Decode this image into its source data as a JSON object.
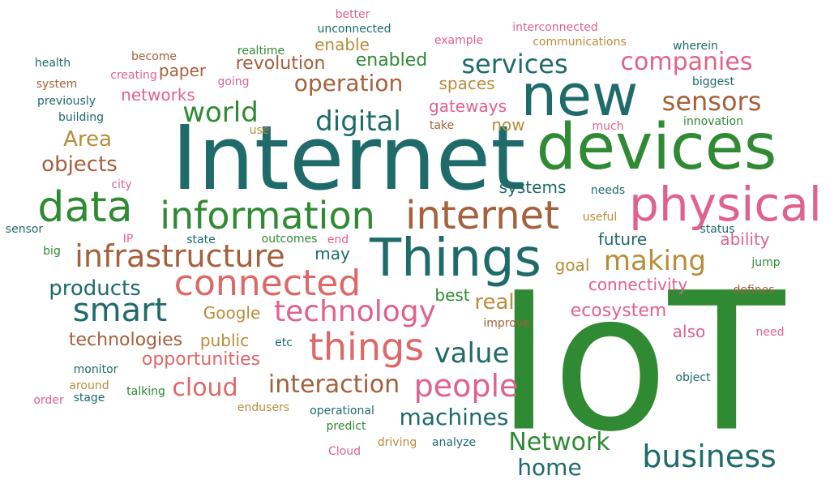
{
  "colors": {
    "teal": "#1e6b6a",
    "green": "#2f8a33",
    "rust": "#a5603c",
    "pink": "#e0628a",
    "salmon": "#dd6868",
    "gold": "#b88d39"
  },
  "words": [
    {
      "text": "IoT",
      "color": "green"
    },
    {
      "text": "Internet",
      "color": "teal"
    },
    {
      "text": "devices",
      "color": "green"
    },
    {
      "text": "new",
      "color": "teal"
    },
    {
      "text": "Things",
      "color": "teal"
    },
    {
      "text": "physical",
      "color": "pink"
    },
    {
      "text": "data",
      "color": "green"
    },
    {
      "text": "information",
      "color": "green"
    },
    {
      "text": "internet",
      "color": "rust"
    },
    {
      "text": "connected",
      "color": "salmon"
    },
    {
      "text": "things",
      "color": "salmon"
    },
    {
      "text": "infrastructure",
      "color": "rust"
    },
    {
      "text": "business",
      "color": "teal"
    },
    {
      "text": "smart",
      "color": "teal"
    },
    {
      "text": "technology",
      "color": "pink"
    },
    {
      "text": "people",
      "color": "pink"
    },
    {
      "text": "digital",
      "color": "teal"
    },
    {
      "text": "services",
      "color": "teal"
    },
    {
      "text": "companies",
      "color": "pink"
    },
    {
      "text": "sensors",
      "color": "rust"
    },
    {
      "text": "world",
      "color": "green"
    },
    {
      "text": "making",
      "color": "gold"
    },
    {
      "text": "value",
      "color": "teal"
    },
    {
      "text": "Network",
      "color": "green"
    },
    {
      "text": "interaction",
      "color": "rust"
    },
    {
      "text": "cloud",
      "color": "salmon"
    },
    {
      "text": "machines",
      "color": "teal"
    },
    {
      "text": "home",
      "color": "teal"
    },
    {
      "text": "operation",
      "color": "rust"
    },
    {
      "text": "products",
      "color": "teal"
    },
    {
      "text": "Area",
      "color": "gold"
    },
    {
      "text": "objects",
      "color": "rust"
    },
    {
      "text": "revolution",
      "color": "rust"
    },
    {
      "text": "enabled",
      "color": "green"
    },
    {
      "text": "real",
      "color": "gold"
    },
    {
      "text": "technologies",
      "color": "rust"
    },
    {
      "text": "opportunities",
      "color": "salmon"
    },
    {
      "text": "ecosystem",
      "color": "pink"
    },
    {
      "text": "connectivity",
      "color": "pink"
    },
    {
      "text": "gateways",
      "color": "pink"
    },
    {
      "text": "paper",
      "color": "rust"
    },
    {
      "text": "networks",
      "color": "pink"
    },
    {
      "text": "enable",
      "color": "gold"
    },
    {
      "text": "spaces",
      "color": "gold"
    },
    {
      "text": "now",
      "color": "gold"
    },
    {
      "text": "systems",
      "color": "teal"
    },
    {
      "text": "future",
      "color": "teal"
    },
    {
      "text": "ability",
      "color": "pink"
    },
    {
      "text": "goal",
      "color": "gold"
    },
    {
      "text": "may",
      "color": "teal"
    },
    {
      "text": "best",
      "color": "green"
    },
    {
      "text": "Google",
      "color": "gold"
    },
    {
      "text": "public",
      "color": "gold"
    },
    {
      "text": "also",
      "color": "pink"
    },
    {
      "text": "better",
      "color": "pink"
    },
    {
      "text": "unconnected",
      "color": "teal"
    },
    {
      "text": "interconnected",
      "color": "pink"
    },
    {
      "text": "example",
      "color": "pink"
    },
    {
      "text": "communications",
      "color": "gold"
    },
    {
      "text": "wherein",
      "color": "teal"
    },
    {
      "text": "realtime",
      "color": "green"
    },
    {
      "text": "become",
      "color": "rust"
    },
    {
      "text": "health",
      "color": "teal"
    },
    {
      "text": "creating",
      "color": "pink"
    },
    {
      "text": "going",
      "color": "pink"
    },
    {
      "text": "system",
      "color": "rust"
    },
    {
      "text": "previously",
      "color": "teal"
    },
    {
      "text": "building",
      "color": "teal"
    },
    {
      "text": "use",
      "color": "gold"
    },
    {
      "text": "take",
      "color": "rust"
    },
    {
      "text": "much",
      "color": "pink"
    },
    {
      "text": "innovation",
      "color": "green"
    },
    {
      "text": "biggest",
      "color": "teal"
    },
    {
      "text": "city",
      "color": "pink"
    },
    {
      "text": "needs",
      "color": "teal"
    },
    {
      "text": "status",
      "color": "teal"
    },
    {
      "text": "useful",
      "color": "gold"
    },
    {
      "text": "sensor",
      "color": "teal"
    },
    {
      "text": "IP",
      "color": "pink"
    },
    {
      "text": "state",
      "color": "teal"
    },
    {
      "text": "outcomes",
      "color": "green"
    },
    {
      "text": "end",
      "color": "pink"
    },
    {
      "text": "big",
      "color": "green"
    },
    {
      "text": "jump",
      "color": "green"
    },
    {
      "text": "defines",
      "color": "rust"
    },
    {
      "text": "improve",
      "color": "rust"
    },
    {
      "text": "need",
      "color": "pink"
    },
    {
      "text": "etc",
      "color": "teal"
    },
    {
      "text": "monitor",
      "color": "teal"
    },
    {
      "text": "around",
      "color": "gold"
    },
    {
      "text": "talking",
      "color": "green"
    },
    {
      "text": "order",
      "color": "pink"
    },
    {
      "text": "stage",
      "color": "teal"
    },
    {
      "text": "object",
      "color": "teal"
    },
    {
      "text": "endusers",
      "color": "gold"
    },
    {
      "text": "operational",
      "color": "teal"
    },
    {
      "text": "predict",
      "color": "green"
    },
    {
      "text": "driving",
      "color": "gold"
    },
    {
      "text": "analyze",
      "color": "teal"
    },
    {
      "text": "Cloud",
      "color": "pink"
    }
  ]
}
